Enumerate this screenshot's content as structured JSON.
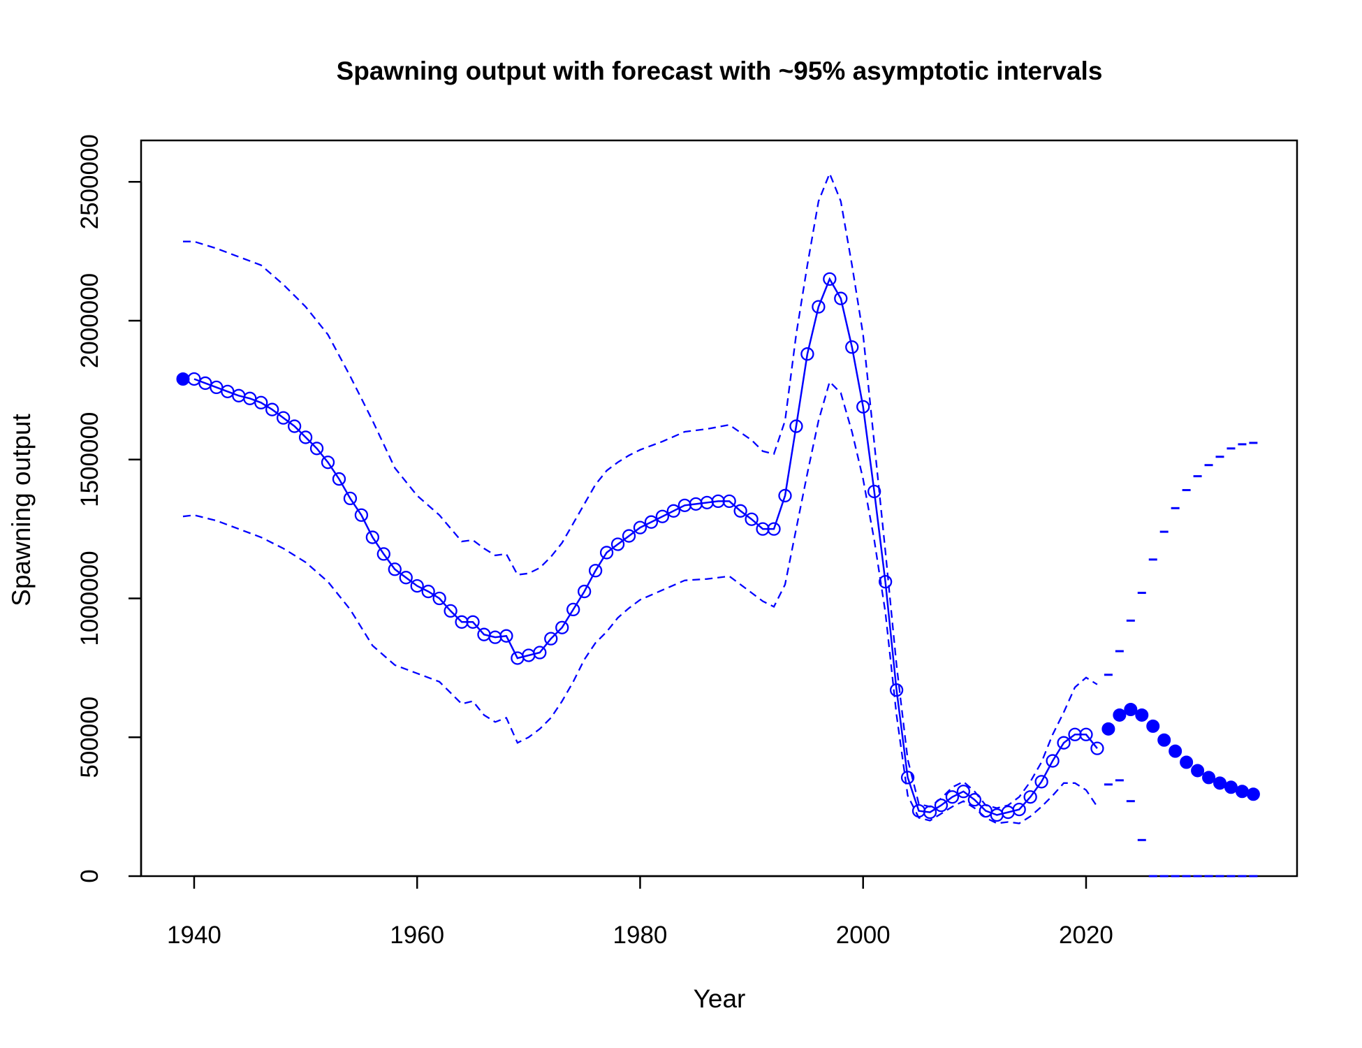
{
  "chart_data": {
    "type": "line",
    "title": "Spawning output with forecast with ~95% asymptotic intervals",
    "xlabel": "Year",
    "ylabel": "Spawning output",
    "xlim": [
      1935,
      2038
    ],
    "ylim": [
      0,
      2650000
    ],
    "x_ticks": [
      1940,
      1960,
      1980,
      2000,
      2020
    ],
    "y_ticks": [
      0,
      500000,
      1000000,
      1500000,
      2000000,
      2500000
    ],
    "x_tick_labels": [
      "1940",
      "1960",
      "1980",
      "2000",
      "2020"
    ],
    "y_tick_labels": [
      "0",
      "500000",
      "1000000",
      "1500000",
      "2000000",
      "2500000"
    ],
    "grid": false,
    "colors": {
      "series": "#0000ff",
      "axis": "#000000"
    },
    "series": [
      {
        "role": "estimate",
        "years": [
          1940,
          1941,
          1942,
          1943,
          1944,
          1945,
          1946,
          1947,
          1948,
          1949,
          1950,
          1951,
          1952,
          1953,
          1954,
          1955,
          1956,
          1957,
          1958,
          1959,
          1960,
          1961,
          1962,
          1963,
          1964,
          1965,
          1966,
          1967,
          1968,
          1969,
          1970,
          1971,
          1972,
          1973,
          1974,
          1975,
          1976,
          1977,
          1978,
          1979,
          1980,
          1981,
          1982,
          1983,
          1984,
          1985,
          1986,
          1987,
          1988,
          1989,
          1990,
          1991,
          1992,
          1993,
          1994,
          1995,
          1996,
          1997,
          1998,
          1999,
          2000,
          2001,
          2002,
          2003,
          2004,
          2005,
          2006,
          2007,
          2008,
          2009,
          2010,
          2011,
          2012,
          2013,
          2014,
          2015,
          2016,
          2017,
          2018,
          2019,
          2020,
          2021
        ],
        "values": [
          1790000,
          1775000,
          1760000,
          1745000,
          1730000,
          1720000,
          1705000,
          1680000,
          1650000,
          1620000,
          1580000,
          1540000,
          1490000,
          1430000,
          1360000,
          1300000,
          1220000,
          1160000,
          1105000,
          1075000,
          1045000,
          1025000,
          1000000,
          955000,
          915000,
          915000,
          870000,
          860000,
          865000,
          785000,
          795000,
          805000,
          855000,
          895000,
          960000,
          1025000,
          1100000,
          1165000,
          1195000,
          1225000,
          1255000,
          1275000,
          1295000,
          1315000,
          1335000,
          1340000,
          1345000,
          1350000,
          1350000,
          1315000,
          1285000,
          1250000,
          1250000,
          1370000,
          1620000,
          1880000,
          2050000,
          2150000,
          2080000,
          1905000,
          1690000,
          1385000,
          1060000,
          670000,
          355000,
          235000,
          230000,
          255000,
          285000,
          305000,
          275000,
          235000,
          220000,
          230000,
          240000,
          285000,
          340000,
          415000,
          480000,
          510000,
          510000,
          460000
        ]
      },
      {
        "role": "initial",
        "years": [
          1939
        ],
        "values": [
          1790000
        ]
      },
      {
        "role": "forecast",
        "years": [
          2022,
          2023,
          2024,
          2025,
          2026,
          2027,
          2028,
          2029,
          2030,
          2031,
          2032,
          2033,
          2034,
          2035
        ],
        "values": [
          530000,
          580000,
          600000,
          580000,
          540000,
          490000,
          450000,
          410000,
          380000,
          355000,
          335000,
          320000,
          305000,
          295000
        ]
      },
      {
        "role": "upper-interval",
        "years": [
          1939,
          1940,
          1942,
          1944,
          1946,
          1948,
          1950,
          1952,
          1954,
          1956,
          1958,
          1960,
          1962,
          1964,
          1965,
          1966,
          1967,
          1968,
          1969,
          1970,
          1971,
          1972,
          1973,
          1974,
          1975,
          1976,
          1977,
          1978,
          1979,
          1980,
          1982,
          1984,
          1986,
          1988,
          1990,
          1991,
          1992,
          1993,
          1994,
          1995,
          1996,
          1997,
          1998,
          1999,
          2000,
          2001,
          2002,
          2003,
          2004,
          2005,
          2006,
          2007,
          2008,
          2009,
          2010,
          2011,
          2012,
          2013,
          2014,
          2015,
          2016,
          2017,
          2018,
          2019,
          2020,
          2021
        ],
        "values": [
          2285000,
          2285000,
          2260000,
          2230000,
          2200000,
          2130000,
          2050000,
          1950000,
          1800000,
          1640000,
          1470000,
          1370000,
          1300000,
          1205000,
          1210000,
          1180000,
          1155000,
          1160000,
          1085000,
          1090000,
          1110000,
          1150000,
          1200000,
          1270000,
          1340000,
          1410000,
          1460000,
          1490000,
          1515000,
          1535000,
          1565000,
          1600000,
          1610000,
          1625000,
          1570000,
          1530000,
          1520000,
          1640000,
          1950000,
          2200000,
          2430000,
          2530000,
          2430000,
          2200000,
          1950000,
          1560000,
          1170000,
          760000,
          420000,
          260000,
          250000,
          280000,
          320000,
          340000,
          305000,
          255000,
          245000,
          255000,
          285000,
          340000,
          410000,
          510000,
          590000,
          680000,
          715000,
          690000
        ]
      },
      {
        "role": "lower-interval",
        "years": [
          1939,
          1940,
          1942,
          1944,
          1946,
          1948,
          1950,
          1952,
          1954,
          1956,
          1958,
          1960,
          1962,
          1964,
          1965,
          1966,
          1967,
          1968,
          1969,
          1970,
          1971,
          1972,
          1973,
          1974,
          1975,
          1976,
          1977,
          1978,
          1979,
          1980,
          1982,
          1984,
          1986,
          1988,
          1990,
          1991,
          1992,
          1993,
          1994,
          1995,
          1996,
          1997,
          1998,
          1999,
          2000,
          2001,
          2002,
          2003,
          2004,
          2005,
          2006,
          2007,
          2008,
          2009,
          2010,
          2011,
          2012,
          2013,
          2014,
          2015,
          2016,
          2017,
          2018,
          2019,
          2020,
          2021
        ],
        "values": [
          1295000,
          1300000,
          1280000,
          1250000,
          1220000,
          1180000,
          1130000,
          1060000,
          960000,
          830000,
          760000,
          730000,
          700000,
          620000,
          630000,
          580000,
          555000,
          570000,
          480000,
          500000,
          530000,
          570000,
          630000,
          700000,
          780000,
          840000,
          880000,
          930000,
          965000,
          995000,
          1030000,
          1065000,
          1070000,
          1080000,
          1020000,
          990000,
          970000,
          1050000,
          1250000,
          1450000,
          1640000,
          1780000,
          1740000,
          1600000,
          1430000,
          1210000,
          950000,
          580000,
          290000,
          210000,
          200000,
          225000,
          250000,
          270000,
          245000,
          210000,
          190000,
          195000,
          190000,
          215000,
          250000,
          290000,
          335000,
          335000,
          310000,
          250000
        ]
      },
      {
        "role": "forecast-upper",
        "years": [
          2022,
          2023,
          2024,
          2025,
          2026,
          2027,
          2028,
          2029,
          2030,
          2031,
          2032,
          2033,
          2034,
          2035
        ],
        "values": [
          725000,
          810000,
          920000,
          1020000,
          1140000,
          1240000,
          1325000,
          1390000,
          1440000,
          1480000,
          1510000,
          1540000,
          1555000,
          1560000
        ]
      },
      {
        "role": "forecast-lower",
        "years": [
          2022,
          2023,
          2024,
          2025,
          2026,
          2027,
          2028,
          2029,
          2030,
          2031,
          2032,
          2033,
          2034,
          2035
        ],
        "values": [
          330000,
          345000,
          270000,
          130000,
          0,
          0,
          0,
          0,
          0,
          0,
          0,
          0,
          0,
          0
        ]
      }
    ]
  }
}
